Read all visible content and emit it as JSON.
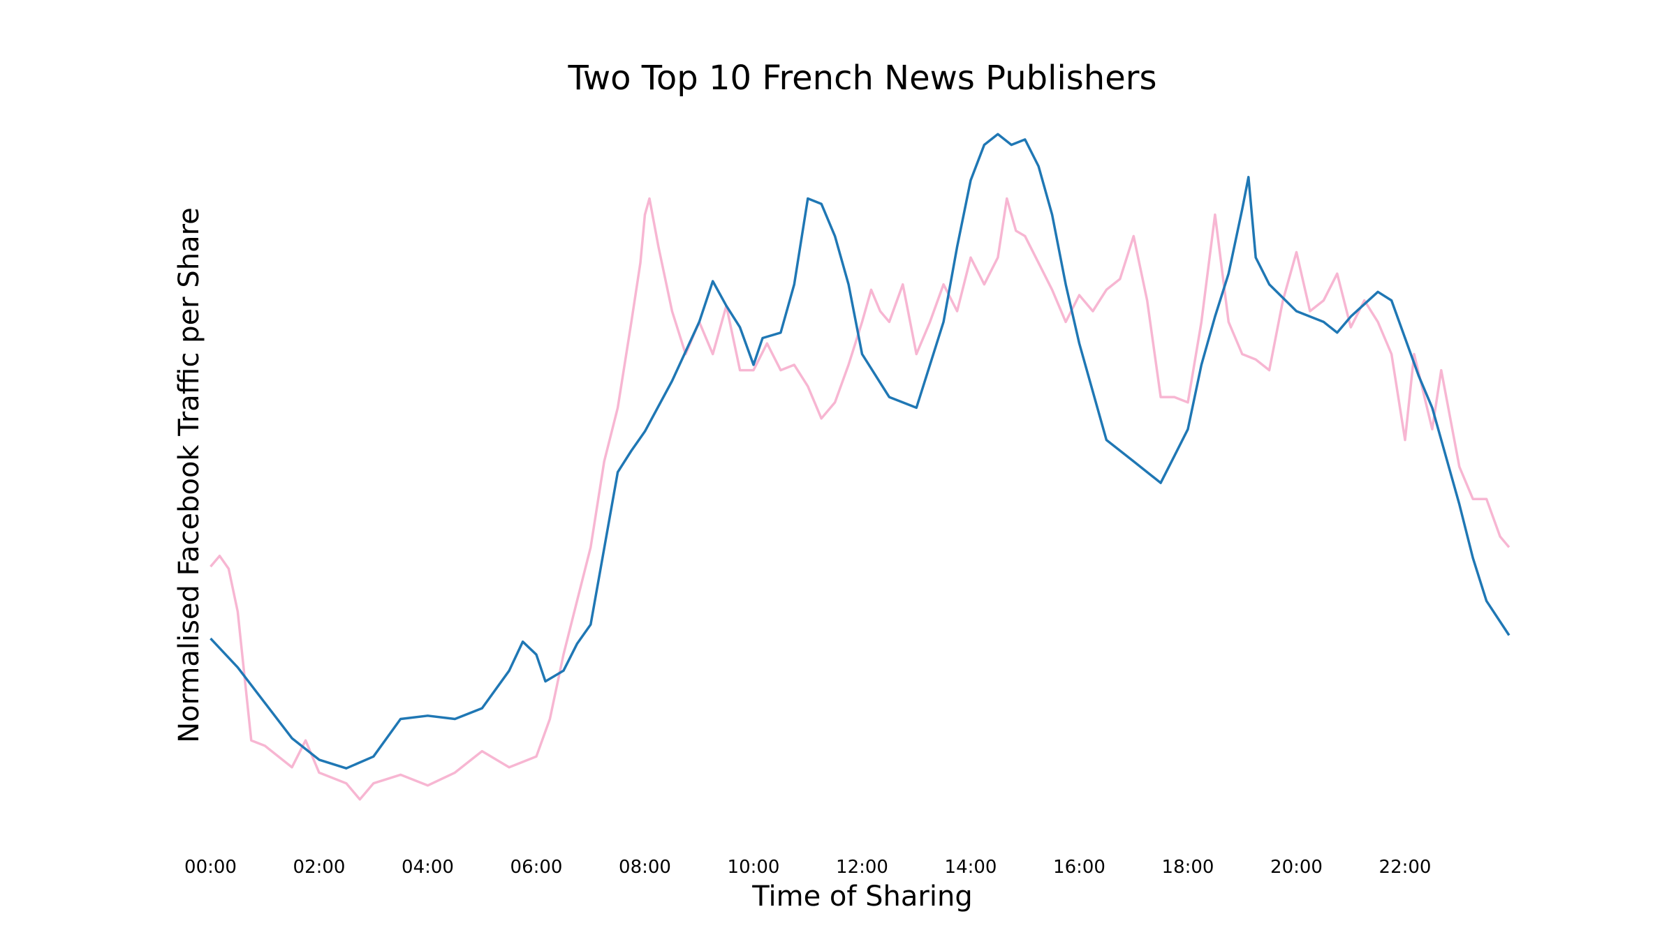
{
  "chart_data": {
    "type": "line",
    "title": "Two Top 10 French News Publishers",
    "xlabel": "Time of Sharing",
    "ylabel": "Normalised Facebook Traffic per Share",
    "x_tick_labels": [
      "00:00",
      "02:00",
      "04:00",
      "06:00",
      "08:00",
      "10:00",
      "12:00",
      "14:00",
      "16:00",
      "18:00",
      "20:00",
      "22:00"
    ],
    "xlim": [
      "00:00",
      "23:55"
    ],
    "ylim": [
      0,
      70
    ],
    "y_ticks_shown": false,
    "grid": false,
    "legend": "none",
    "series": [
      {
        "color": "#1f77b4",
        "points": [
          [
            "00:00",
            20.5
          ],
          [
            "00:30",
            17.8
          ],
          [
            "01:00",
            14.5
          ],
          [
            "01:30",
            11.2
          ],
          [
            "02:00",
            9.2
          ],
          [
            "02:30",
            8.4
          ],
          [
            "03:00",
            9.5
          ],
          [
            "03:30",
            13.0
          ],
          [
            "04:00",
            13.3
          ],
          [
            "04:30",
            13.0
          ],
          [
            "05:00",
            14.0
          ],
          [
            "05:30",
            17.5
          ],
          [
            "05:45",
            20.2
          ],
          [
            "06:00",
            19.0
          ],
          [
            "06:10",
            16.5
          ],
          [
            "06:30",
            17.5
          ],
          [
            "06:45",
            20.0
          ],
          [
            "07:00",
            21.8
          ],
          [
            "07:30",
            36.0
          ],
          [
            "07:45",
            38.0
          ],
          [
            "08:00",
            39.8
          ],
          [
            "08:30",
            44.5
          ],
          [
            "09:00",
            50.0
          ],
          [
            "09:15",
            53.8
          ],
          [
            "09:30",
            51.5
          ],
          [
            "09:45",
            49.5
          ],
          [
            "10:00",
            46.0
          ],
          [
            "10:10",
            48.5
          ],
          [
            "10:30",
            49.0
          ],
          [
            "10:45",
            53.5
          ],
          [
            "11:00",
            61.5
          ],
          [
            "11:15",
            61.0
          ],
          [
            "11:30",
            58.0
          ],
          [
            "11:45",
            53.5
          ],
          [
            "12:00",
            47.0
          ],
          [
            "12:30",
            43.0
          ],
          [
            "13:00",
            42.0
          ],
          [
            "13:30",
            50.0
          ],
          [
            "13:45",
            57.0
          ],
          [
            "14:00",
            63.2
          ],
          [
            "14:15",
            66.5
          ],
          [
            "14:30",
            67.5
          ],
          [
            "14:45",
            66.5
          ],
          [
            "15:00",
            67.0
          ],
          [
            "15:15",
            64.5
          ],
          [
            "15:30",
            60.0
          ],
          [
            "15:45",
            53.5
          ],
          [
            "16:00",
            48.0
          ],
          [
            "16:30",
            39.0
          ],
          [
            "17:00",
            37.0
          ],
          [
            "17:30",
            35.0
          ],
          [
            "17:45",
            37.5
          ],
          [
            "18:00",
            40.0
          ],
          [
            "18:15",
            46.0
          ],
          [
            "18:30",
            50.5
          ],
          [
            "18:45",
            54.5
          ],
          [
            "19:00",
            60.5
          ],
          [
            "19:07",
            63.5
          ],
          [
            "19:15",
            56.0
          ],
          [
            "19:30",
            53.5
          ],
          [
            "20:00",
            51.0
          ],
          [
            "20:30",
            50.0
          ],
          [
            "20:45",
            49.0
          ],
          [
            "21:00",
            50.5
          ],
          [
            "21:30",
            52.8
          ],
          [
            "21:45",
            52.0
          ],
          [
            "22:00",
            48.5
          ],
          [
            "22:15",
            45.0
          ],
          [
            "22:30",
            42.0
          ],
          [
            "23:00",
            33.0
          ],
          [
            "23:15",
            28.0
          ],
          [
            "23:30",
            24.0
          ],
          [
            "23:55",
            20.8
          ]
        ]
      },
      {
        "color": "#f7b6d2",
        "points": [
          [
            "00:00",
            27.2
          ],
          [
            "00:10",
            28.2
          ],
          [
            "00:20",
            27.0
          ],
          [
            "00:30",
            23.0
          ],
          [
            "00:45",
            11.0
          ],
          [
            "01:00",
            10.5
          ],
          [
            "01:30",
            8.5
          ],
          [
            "01:45",
            11.0
          ],
          [
            "02:00",
            8.0
          ],
          [
            "02:30",
            7.0
          ],
          [
            "02:45",
            5.5
          ],
          [
            "03:00",
            7.0
          ],
          [
            "03:30",
            7.8
          ],
          [
            "04:00",
            6.8
          ],
          [
            "04:30",
            8.0
          ],
          [
            "05:00",
            10.0
          ],
          [
            "05:30",
            8.5
          ],
          [
            "06:00",
            9.5
          ],
          [
            "06:15",
            13.0
          ],
          [
            "06:30",
            19.0
          ],
          [
            "06:45",
            24.0
          ],
          [
            "07:00",
            29.0
          ],
          [
            "07:15",
            37.0
          ],
          [
            "07:30",
            42.0
          ],
          [
            "07:45",
            50.0
          ],
          [
            "07:55",
            55.5
          ],
          [
            "08:00",
            60.0
          ],
          [
            "08:05",
            61.5
          ],
          [
            "08:15",
            57.0
          ],
          [
            "08:30",
            51.0
          ],
          [
            "08:45",
            47.0
          ],
          [
            "09:00",
            50.0
          ],
          [
            "09:15",
            47.0
          ],
          [
            "09:30",
            51.5
          ],
          [
            "09:45",
            45.5
          ],
          [
            "10:00",
            45.5
          ],
          [
            "10:15",
            48.0
          ],
          [
            "10:30",
            45.5
          ],
          [
            "10:45",
            46.0
          ],
          [
            "11:00",
            44.0
          ],
          [
            "11:15",
            41.0
          ],
          [
            "11:30",
            42.5
          ],
          [
            "11:45",
            46.0
          ],
          [
            "12:00",
            50.0
          ],
          [
            "12:10",
            53.0
          ],
          [
            "12:20",
            51.0
          ],
          [
            "12:30",
            50.0
          ],
          [
            "12:45",
            53.5
          ],
          [
            "13:00",
            47.0
          ],
          [
            "13:15",
            50.0
          ],
          [
            "13:30",
            53.5
          ],
          [
            "13:45",
            51.0
          ],
          [
            "14:00",
            56.0
          ],
          [
            "14:15",
            53.5
          ],
          [
            "14:30",
            56.0
          ],
          [
            "14:40",
            61.5
          ],
          [
            "14:50",
            58.5
          ],
          [
            "15:00",
            58.0
          ],
          [
            "15:15",
            55.5
          ],
          [
            "15:30",
            53.0
          ],
          [
            "15:45",
            50.0
          ],
          [
            "16:00",
            52.5
          ],
          [
            "16:15",
            51.0
          ],
          [
            "16:30",
            53.0
          ],
          [
            "16:45",
            54.0
          ],
          [
            "17:00",
            58.0
          ],
          [
            "17:15",
            52.0
          ],
          [
            "17:30",
            43.0
          ],
          [
            "17:45",
            43.0
          ],
          [
            "18:00",
            42.5
          ],
          [
            "18:15",
            50.0
          ],
          [
            "18:30",
            60.0
          ],
          [
            "18:45",
            50.0
          ],
          [
            "19:00",
            47.0
          ],
          [
            "19:15",
            46.5
          ],
          [
            "19:30",
            45.5
          ],
          [
            "19:45",
            52.0
          ],
          [
            "20:00",
            56.5
          ],
          [
            "20:15",
            51.0
          ],
          [
            "20:30",
            52.0
          ],
          [
            "20:45",
            54.5
          ],
          [
            "21:00",
            49.5
          ],
          [
            "21:15",
            52.0
          ],
          [
            "21:30",
            50.0
          ],
          [
            "21:45",
            47.0
          ],
          [
            "22:00",
            39.0
          ],
          [
            "22:10",
            47.0
          ],
          [
            "22:30",
            40.0
          ],
          [
            "22:40",
            45.5
          ],
          [
            "23:00",
            36.5
          ],
          [
            "23:15",
            33.5
          ],
          [
            "23:30",
            33.5
          ],
          [
            "23:45",
            30.0
          ],
          [
            "23:55",
            29.0
          ]
        ]
      }
    ]
  }
}
